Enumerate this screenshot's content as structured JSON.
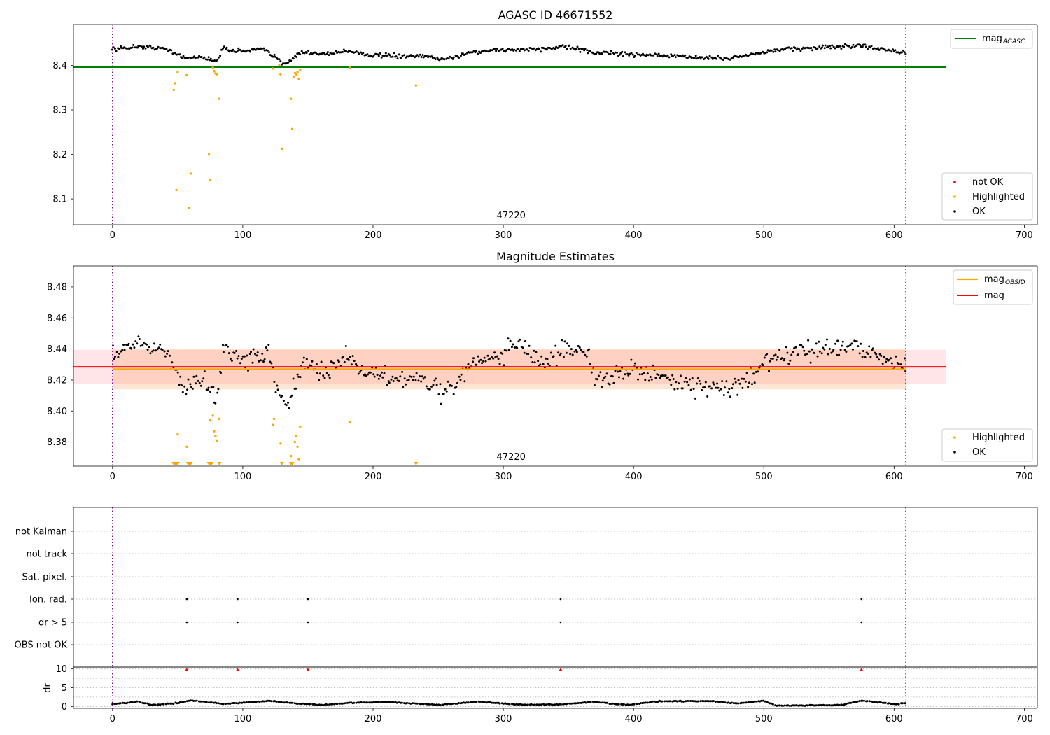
{
  "chart_data": [
    {
      "type": "scatter",
      "title": "AGASC ID 46671552",
      "xlim": [
        -30,
        710
      ],
      "ylim": [
        8.042,
        8.492
      ],
      "xticks": [
        0,
        100,
        200,
        300,
        400,
        500,
        600,
        700
      ],
      "yticks": [
        8.1,
        8.2,
        8.3,
        8.4
      ],
      "annotation": "47220",
      "obs_bounds": [
        0,
        609
      ],
      "mag_agasc": {
        "value": 8.396,
        "x_range": [
          -30,
          640
        ],
        "color": "#008000",
        "label": "mag",
        "label_sub": "AGASC"
      },
      "legend_series": [
        "not OK",
        "Highlighted",
        "OK"
      ],
      "series": [
        {
          "name": "OK",
          "color": "#000000",
          "profile": "agasc_ok",
          "n": 605,
          "x_range": [
            0,
            609
          ]
        },
        {
          "name": "Highlighted",
          "color": "#ffa500",
          "points": [
            [
              47,
              8.345
            ],
            [
              48,
              8.36
            ],
            [
              49,
              8.12
            ],
            [
              50,
              8.385
            ],
            [
              57,
              8.378
            ],
            [
              59,
              8.08
            ],
            [
              60,
              8.157
            ],
            [
              74,
              8.2
            ],
            [
              75,
              8.142
            ],
            [
              77,
              8.395
            ],
            [
              78,
              8.387
            ],
            [
              79,
              8.382
            ],
            [
              80,
              8.38
            ],
            [
              82,
              8.325
            ],
            [
              123,
              8.393
            ],
            [
              128,
              8.4
            ],
            [
              129,
              8.38
            ],
            [
              130,
              8.213
            ],
            [
              137,
              8.325
            ],
            [
              138,
              8.257
            ],
            [
              139,
              8.375
            ],
            [
              140,
              8.383
            ],
            [
              141,
              8.38
            ],
            [
              142,
              8.385
            ],
            [
              143,
              8.37
            ],
            [
              144,
              8.39
            ],
            [
              182,
              8.395
            ],
            [
              233,
              8.355
            ]
          ]
        },
        {
          "name": "not OK",
          "color": "#ff0000",
          "points": []
        }
      ]
    },
    {
      "type": "scatter",
      "title": "Magnitude Estimates",
      "xlim": [
        -30,
        710
      ],
      "ylim": [
        8.3645,
        8.4935
      ],
      "xticks": [
        0,
        100,
        200,
        300,
        400,
        500,
        600,
        700
      ],
      "yticks": [
        8.38,
        8.4,
        8.42,
        8.44,
        8.46,
        8.48
      ],
      "annotation": "47220",
      "obs_bounds": [
        0,
        609
      ],
      "mag": {
        "value": 8.4285,
        "band": [
          8.4175,
          8.4395
        ],
        "x_range": [
          -30,
          640
        ],
        "color": "#ff0000",
        "label": "mag"
      },
      "mag_obsid": {
        "value": 8.427,
        "band": [
          8.414,
          8.44
        ],
        "x_range": [
          0,
          609
        ],
        "color": "#ffa500",
        "label": "mag",
        "label_sub": "OBSID"
      },
      "legend_series": [
        "Highlighted",
        "OK"
      ],
      "series": [
        {
          "name": "OK",
          "color": "#000000",
          "profile": "mag_ok",
          "n": 585,
          "x_range": [
            0,
            609
          ]
        },
        {
          "name": "Highlighted",
          "color": "#ffa500",
          "points": [
            [
              50,
              8.385
            ],
            [
              57,
              8.377
            ],
            [
              75,
              8.394
            ],
            [
              77,
              8.397
            ],
            [
              78,
              8.387
            ],
            [
              79,
              8.384
            ],
            [
              80,
              8.381
            ],
            [
              82,
              8.395
            ],
            [
              123,
              8.391
            ],
            [
              124,
              8.395
            ],
            [
              129,
              8.379
            ],
            [
              137,
              8.371
            ],
            [
              140,
              8.38
            ],
            [
              141,
              8.384
            ],
            [
              142,
              8.377
            ],
            [
              143,
              8.369
            ],
            [
              144,
              8.39
            ],
            [
              182,
              8.393
            ]
          ],
          "clipped_below": [
            47,
            48,
            49,
            50,
            58,
            59,
            60,
            74,
            75,
            76,
            82,
            130,
            137,
            138,
            233
          ]
        }
      ]
    },
    {
      "type": "scatter",
      "title": "",
      "xlim": [
        -30,
        710
      ],
      "categories": [
        "not Kalman",
        "not track",
        "Sat. pixel.",
        "Ion. rad.",
        "dr > 5",
        "OBS not OK"
      ],
      "obs_bounds": [
        0,
        609
      ],
      "flags": [
        {
          "category": "Ion. rad.",
          "x": [
            57,
            96,
            150,
            344,
            575
          ]
        },
        {
          "category": "dr > 5",
          "x": [
            57,
            96,
            150,
            344,
            575
          ]
        }
      ]
    },
    {
      "type": "scatter",
      "title": "",
      "xlim": [
        -30,
        710
      ],
      "ylim": [
        -0.5,
        10.5
      ],
      "xticks": [
        0,
        100,
        200,
        300,
        400,
        500,
        600,
        700
      ],
      "yticks": [
        0,
        5,
        10
      ],
      "ylabel": "dr",
      "obs_bounds": [
        0,
        609
      ],
      "series": [
        {
          "name": "dr",
          "color": "#000000",
          "profile": "dr",
          "n": 480,
          "x_range": [
            0,
            609
          ]
        }
      ],
      "clipped_above": {
        "color": "#ff0000",
        "x": [
          57,
          96,
          150,
          344,
          575
        ]
      }
    }
  ]
}
